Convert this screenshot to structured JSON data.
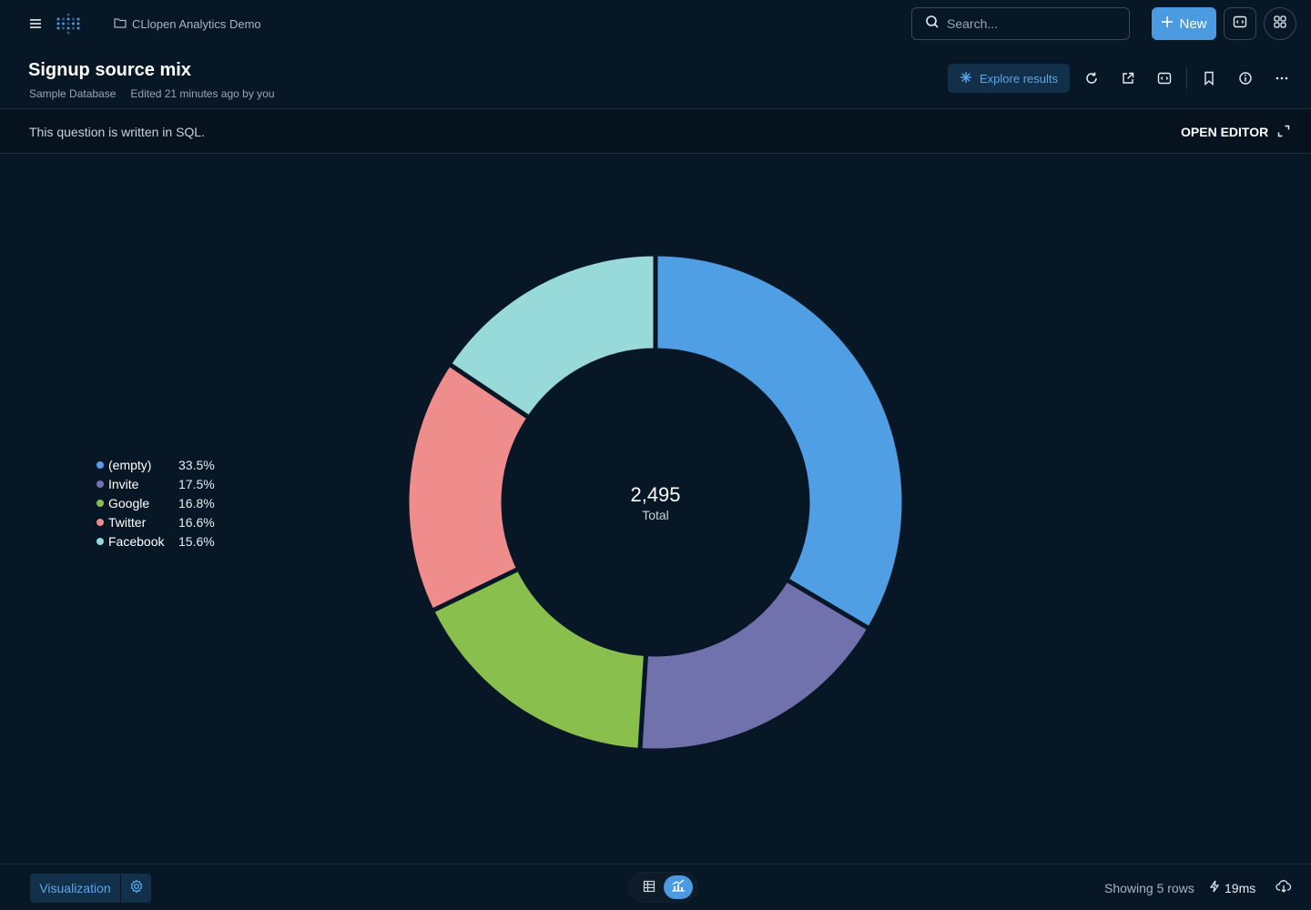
{
  "header": {
    "collection": "CLlopen Analytics Demo",
    "search_placeholder": "Search...",
    "new_label": "New",
    "title": "Signup source mix",
    "database": "Sample Database",
    "edited": "Edited 21 minutes ago by you",
    "explore_label": "Explore results"
  },
  "query": {
    "message": "This question is written in SQL.",
    "open_editor": "OPEN EDITOR"
  },
  "chart_data": {
    "type": "pie",
    "variant": "donut",
    "total": "2,495",
    "total_label": "Total",
    "legend_placement": "left",
    "slices": [
      {
        "name": "(empty)",
        "percent": 33.5,
        "label": "33.5%",
        "color": "#509ee3"
      },
      {
        "name": "Invite",
        "percent": 17.5,
        "label": "17.5%",
        "color": "#7172ad"
      },
      {
        "name": "Google",
        "percent": 16.8,
        "label": "16.8%",
        "color": "#88bf4d"
      },
      {
        "name": "Twitter",
        "percent": 16.6,
        "label": "16.6%",
        "color": "#ef8c8c"
      },
      {
        "name": "Facebook",
        "percent": 15.6,
        "label": "15.6%",
        "color": "#98d9d9"
      }
    ]
  },
  "footer": {
    "visualization_label": "Visualization",
    "rows_info": "Showing 5 rows",
    "timing": "19ms"
  },
  "colors": {
    "background": "#081726",
    "accent": "#4c9be0"
  }
}
